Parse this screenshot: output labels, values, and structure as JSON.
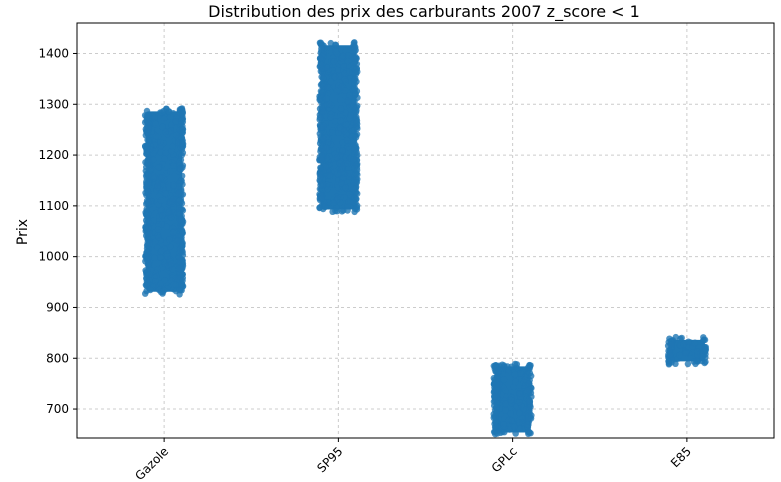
{
  "chart_data": {
    "type": "strip",
    "title": "Distribution des prix des carburants 2007 z_score < 1",
    "xlabel": "",
    "ylabel": "Prix",
    "categories": [
      "Gazole",
      "SP95",
      "GPLc",
      "E85"
    ],
    "yticks": [
      700,
      800,
      900,
      1000,
      1100,
      1200,
      1300,
      1400
    ],
    "ylim": [
      643,
      1460
    ],
    "grid": true,
    "point_color": "#1f77b4",
    "series": [
      {
        "category": "Gazole",
        "min": 925,
        "max": 1292
      },
      {
        "category": "SP95",
        "min": 1087,
        "max": 1422
      },
      {
        "category": "GPLc",
        "min": 648,
        "max": 790
      },
      {
        "category": "E85",
        "min": 788,
        "max": 842
      }
    ]
  }
}
